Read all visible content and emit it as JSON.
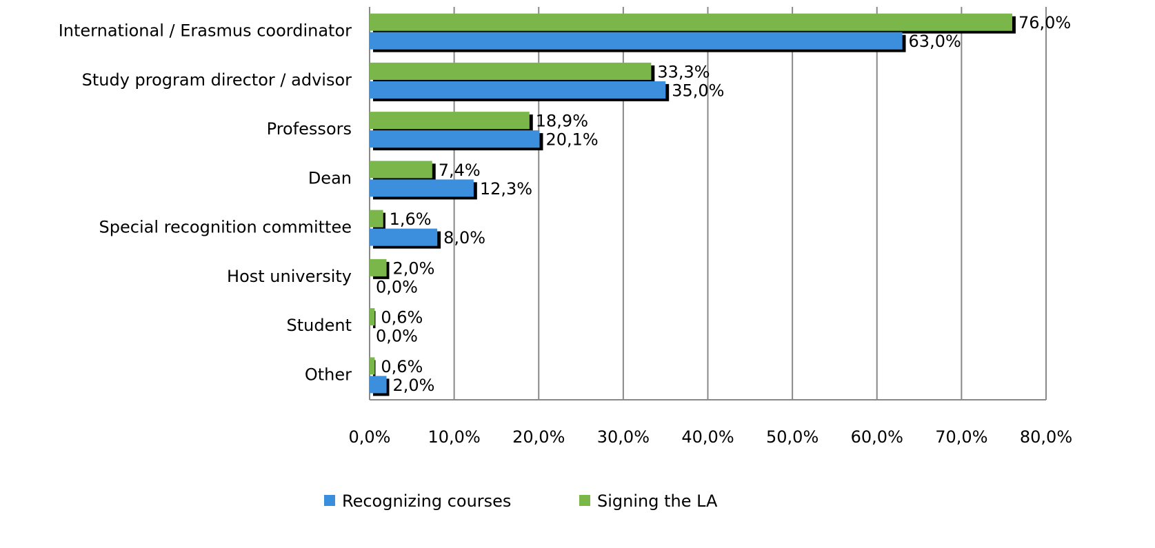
{
  "chart_data": {
    "type": "hbar",
    "categories": [
      "International / Erasmus coordinator",
      "Study program director / advisor",
      "Professors",
      "Dean",
      "Special recognition committee",
      "Host university",
      "Student",
      "Other"
    ],
    "series": [
      {
        "name": "Recognizing courses",
        "color": "#3a8fdc",
        "values": [
          63.0,
          35.0,
          20.1,
          12.3,
          8.0,
          0.0,
          0.0,
          2.0
        ],
        "value_labels": [
          "63,0%",
          "35,0%",
          "20,1%",
          "12,3%",
          "8,0%",
          "0,0%",
          "0,0%",
          "2,0%"
        ]
      },
      {
        "name": "Signing the LA",
        "color": "#7ab648",
        "values": [
          76.0,
          33.3,
          18.9,
          7.4,
          1.6,
          2.0,
          0.6,
          0.6
        ],
        "value_labels": [
          "76,0%",
          "33,3%",
          "18,9%",
          "7,4%",
          "1,6%",
          "2,0%",
          "0,6%",
          "0,6%"
        ]
      }
    ],
    "xlim": [
      0,
      80
    ],
    "xticks": [
      {
        "value": 0,
        "label": "0,0%"
      },
      {
        "value": 10,
        "label": "10,0%"
      },
      {
        "value": 20,
        "label": "20,0%"
      },
      {
        "value": 30,
        "label": "30,0%"
      },
      {
        "value": 40,
        "label": "40,0%"
      },
      {
        "value": 50,
        "label": "50,0%"
      },
      {
        "value": 60,
        "label": "60,0%"
      },
      {
        "value": 70,
        "label": "70,0%"
      },
      {
        "value": 80,
        "label": "80,0%"
      }
    ],
    "grid": true,
    "legend": "bottom"
  }
}
